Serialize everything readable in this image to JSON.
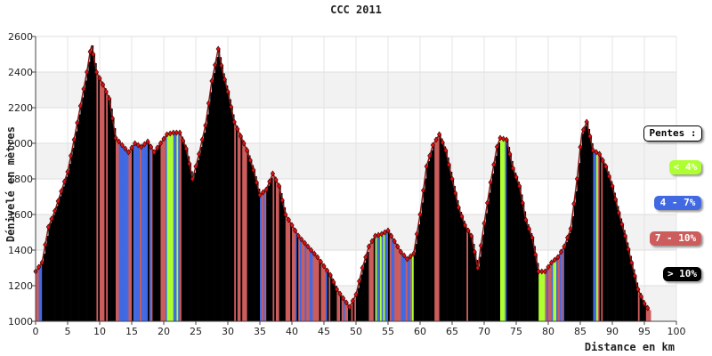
{
  "chart_data": {
    "type": "area",
    "title": "CCC 2011",
    "xlabel": "Distance en km",
    "ylabel": "Dénivelé en mètres",
    "xlim": [
      0,
      100
    ],
    "ylim": [
      1000,
      2600
    ],
    "x_ticks": [
      "0",
      "5",
      "10",
      "15",
      "20",
      "25",
      "30",
      "35",
      "40",
      "45",
      "50",
      "55",
      "60",
      "65",
      "70",
      "75",
      "80",
      "85",
      "90",
      "95",
      "100"
    ],
    "y_ticks": [
      "1000",
      "1200",
      "1400",
      "1600",
      "1800",
      "2000",
      "2200",
      "2400",
      "2600"
    ],
    "grid": true,
    "legend_title": "Pentes :",
    "legend_placement": "right",
    "legend": [
      {
        "label": "< 4%",
        "color": "#adff2f"
      },
      {
        "label": "4 - 7%",
        "color": "#4169e1"
      },
      {
        "label": "7 - 10%",
        "color": "#cd5c5c"
      },
      {
        "label": "> 10%",
        "color": "#000000"
      }
    ],
    "series": [
      {
        "x": [
          0,
          1,
          2,
          3,
          4,
          5,
          6,
          7,
          8,
          8.7,
          9.5,
          10.5,
          11.5,
          12.5,
          13.5,
          14.5,
          15.5,
          16.5,
          17.5,
          18.5,
          19.5,
          20.5,
          21.5,
          22.5,
          23.5,
          24.5,
          25.5,
          26.5,
          27.5,
          28.5,
          29.2,
          30,
          31,
          32,
          33,
          34,
          35,
          36,
          37,
          38,
          39,
          40,
          41,
          42,
          43,
          44,
          45,
          46,
          47,
          48,
          49,
          50,
          51,
          52,
          53,
          54,
          55,
          56,
          57,
          58,
          59,
          60,
          61,
          62,
          63,
          64,
          65,
          66,
          67,
          68,
          69,
          70,
          71,
          72,
          72.5,
          73.5,
          74.5,
          75.5,
          76.5,
          77.5,
          78.5,
          79.5,
          80.5,
          81.5,
          82.5,
          83.5,
          84.5,
          85.2,
          86,
          87,
          88,
          89,
          90,
          91,
          92,
          93,
          94,
          95,
          96
        ],
        "y": [
          1280,
          1330,
          1530,
          1620,
          1730,
          1840,
          2020,
          2210,
          2400,
          2560,
          2400,
          2330,
          2250,
          2030,
          1990,
          1950,
          2000,
          1980,
          2010,
          1950,
          2000,
          2050,
          2060,
          2060,
          1970,
          1800,
          1940,
          2100,
          2350,
          2530,
          2400,
          2290,
          2120,
          2040,
          1960,
          1850,
          1710,
          1740,
          1830,
          1760,
          1600,
          1540,
          1480,
          1440,
          1400,
          1360,
          1310,
          1260,
          1180,
          1130,
          1080,
          1150,
          1300,
          1420,
          1480,
          1490,
          1510,
          1450,
          1390,
          1350,
          1380,
          1600,
          1870,
          1990,
          2050,
          1960,
          1800,
          1640,
          1540,
          1480,
          1300,
          1550,
          1780,
          1980,
          2030,
          2020,
          1860,
          1760,
          1570,
          1470,
          1280,
          1280,
          1330,
          1360,
          1420,
          1520,
          1800,
          2050,
          2120,
          1960,
          1940,
          1870,
          1760,
          1610,
          1480,
          1330,
          1180,
          1100,
          1050
        ]
      }
    ]
  }
}
